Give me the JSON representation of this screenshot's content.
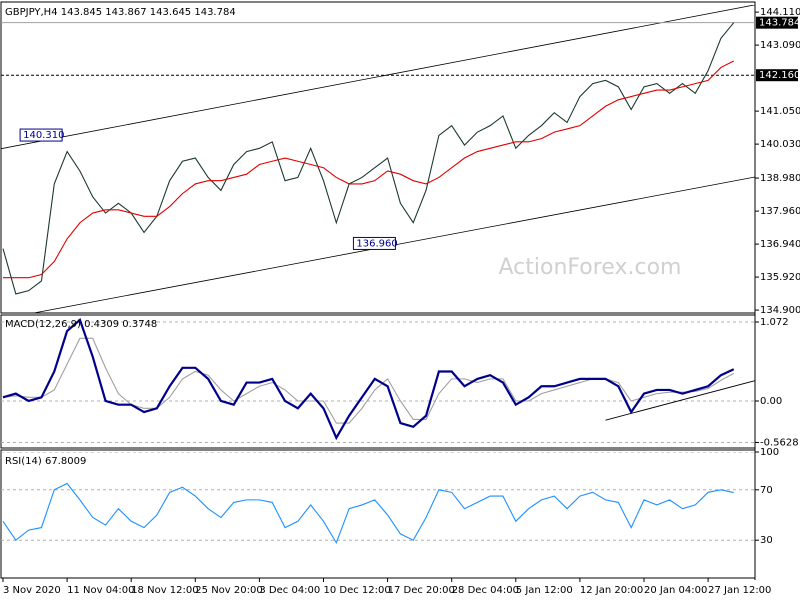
{
  "chart_data": [
    {
      "type": "line",
      "title": "GBPJPY,H4  143.845 143.867 143.645 143.784",
      "watermark": "ActionForex.com",
      "ylim": [
        134.81,
        144.33
      ],
      "yticks": [
        {
          "value": 144.11,
          "label": "144.110"
        },
        {
          "value": 143.09,
          "label": "143.090"
        },
        {
          "value": 141.05,
          "label": "141.050"
        },
        {
          "value": 140.03,
          "label": "140.030"
        },
        {
          "value": 138.98,
          "label": "138.980"
        },
        {
          "value": 137.96,
          "label": "137.960"
        },
        {
          "value": 136.94,
          "label": "136.940"
        },
        {
          "value": 135.92,
          "label": "135.920"
        },
        {
          "value": 134.9,
          "label": "134.900"
        }
      ],
      "series": [
        {
          "color": "#1c3a2c",
          "values": [
            136.8,
            135.4,
            135.5,
            135.8,
            138.8,
            139.8,
            139.2,
            138.4,
            137.9,
            138.2,
            137.9,
            137.3,
            137.8,
            138.9,
            139.5,
            139.6,
            139.0,
            138.6,
            139.4,
            139.8,
            139.9,
            140.1,
            138.9,
            139.0,
            139.9,
            138.9,
            137.6,
            138.8,
            139.0,
            139.3,
            139.6,
            138.2,
            137.6,
            138.6,
            140.3,
            140.6,
            140.0,
            140.4,
            140.6,
            140.9,
            139.9,
            140.3,
            140.6,
            141.0,
            140.7,
            141.5,
            141.9,
            142.0,
            141.8,
            141.1,
            141.8,
            141.9,
            141.6,
            141.9,
            141.6,
            142.3,
            143.3,
            143.784
          ]
        },
        {
          "color": "#e00000",
          "values": [
            135.9,
            135.9,
            135.9,
            136.0,
            136.4,
            137.1,
            137.6,
            137.9,
            138.0,
            138.0,
            137.9,
            137.8,
            137.8,
            138.1,
            138.5,
            138.8,
            138.9,
            138.9,
            139.0,
            139.1,
            139.4,
            139.5,
            139.6,
            139.5,
            139.4,
            139.3,
            139.0,
            138.8,
            138.8,
            138.9,
            139.2,
            139.1,
            138.9,
            138.8,
            139.0,
            139.3,
            139.6,
            139.8,
            139.9,
            140.0,
            140.1,
            140.1,
            140.2,
            140.4,
            140.5,
            140.6,
            140.9,
            141.2,
            141.4,
            141.5,
            141.6,
            141.7,
            141.7,
            141.8,
            141.9,
            142.0,
            142.4,
            142.6
          ]
        }
      ],
      "channel": {
        "upper": [
          139.9,
          144.21
        ],
        "lower": [
          134.63,
          138.89
        ]
      },
      "price_lines": [
        {
          "value": 143.784,
          "label": "143.784",
          "style": "solid"
        },
        {
          "value": 142.16,
          "label": "142.160",
          "style": "dashed"
        }
      ],
      "annotations": [
        {
          "value": 140.31,
          "label": "140.310",
          "index": 5
        },
        {
          "value": 136.96,
          "label": "136.960",
          "index": 31
        }
      ]
    },
    {
      "type": "line",
      "title": "MACD(12,26,9) 0.4309 0.3748",
      "ylim": [
        -0.638,
        1.167
      ],
      "yticks": [
        1.072,
        {
          "value": 0,
          "label": "0.00"
        },
        -0.5628
      ],
      "series": [
        {
          "color": "#a0a0a0",
          "values": [
            0.05,
            0.07,
            0.05,
            0.05,
            0.15,
            0.5,
            0.85,
            0.85,
            0.45,
            0.1,
            -0.05,
            -0.1,
            -0.1,
            0.05,
            0.3,
            0.4,
            0.35,
            0.15,
            0.0,
            0.1,
            0.2,
            0.25,
            0.15,
            0.0,
            0.0,
            0.0,
            -0.3,
            -0.3,
            -0.1,
            0.15,
            0.3,
            0.0,
            -0.25,
            -0.25,
            0.1,
            0.3,
            0.3,
            0.25,
            0.3,
            0.3,
            0.0,
            0.0,
            0.1,
            0.15,
            0.2,
            0.25,
            0.3,
            0.3,
            0.25,
            0.0,
            0.05,
            0.1,
            0.12,
            0.12,
            0.13,
            0.17,
            0.28,
            0.3748
          ]
        },
        {
          "color": "#00008b",
          "values": [
            0.05,
            0.1,
            0.0,
            0.05,
            0.4,
            0.95,
            1.1,
            0.6,
            0.0,
            -0.05,
            -0.05,
            -0.15,
            -0.1,
            0.2,
            0.45,
            0.45,
            0.3,
            0.0,
            -0.05,
            0.25,
            0.25,
            0.3,
            0.0,
            -0.1,
            0.1,
            -0.1,
            -0.5,
            -0.2,
            0.05,
            0.3,
            0.2,
            -0.3,
            -0.35,
            -0.2,
            0.4,
            0.4,
            0.2,
            0.3,
            0.35,
            0.25,
            -0.05,
            0.05,
            0.2,
            0.2,
            0.25,
            0.3,
            0.3,
            0.3,
            0.2,
            -0.15,
            0.1,
            0.15,
            0.15,
            0.1,
            0.15,
            0.2,
            0.35,
            0.4309
          ]
        }
      ],
      "trendline": {
        "index": [
          47,
          57
        ],
        "values": [
          -0.26,
          0.2
        ]
      }
    },
    {
      "type": "line",
      "title": "RSI(14) 67.8009",
      "ylim": [
        0,
        100
      ],
      "yticks": [
        100,
        70,
        30
      ],
      "categories": [
        "3 Nov 2020",
        null,
        null,
        null,
        null,
        "11 Nov 04:00",
        null,
        null,
        null,
        null,
        "18 Nov 12:00",
        null,
        null,
        null,
        null,
        "25 Nov 20:00",
        null,
        null,
        null,
        null,
        "3 Dec 04:00",
        null,
        null,
        null,
        null,
        "10 Dec 12:00",
        null,
        null,
        null,
        null,
        "17 Dec 20:00",
        null,
        null,
        null,
        null,
        "28 Dec 04:00",
        null,
        null,
        null,
        null,
        "5 Jan 12:00",
        null,
        null,
        null,
        null,
        "12 Jan 20:00",
        null,
        null,
        null,
        null,
        "20 Jan 04:00",
        null,
        null,
        null,
        null,
        "27 Jan 12:00",
        null,
        null
      ],
      "series": [
        {
          "color": "#1e90ff",
          "values": [
            45,
            30,
            38,
            40,
            70,
            75,
            62,
            48,
            42,
            55,
            45,
            40,
            50,
            68,
            72,
            65,
            55,
            48,
            60,
            62,
            62,
            60,
            40,
            45,
            58,
            45,
            28,
            55,
            58,
            62,
            50,
            35,
            30,
            48,
            70,
            68,
            55,
            60,
            65,
            65,
            45,
            55,
            62,
            65,
            55,
            65,
            68,
            62,
            60,
            40,
            62,
            58,
            62,
            55,
            58,
            68,
            70,
            67.8009
          ]
        }
      ]
    }
  ]
}
